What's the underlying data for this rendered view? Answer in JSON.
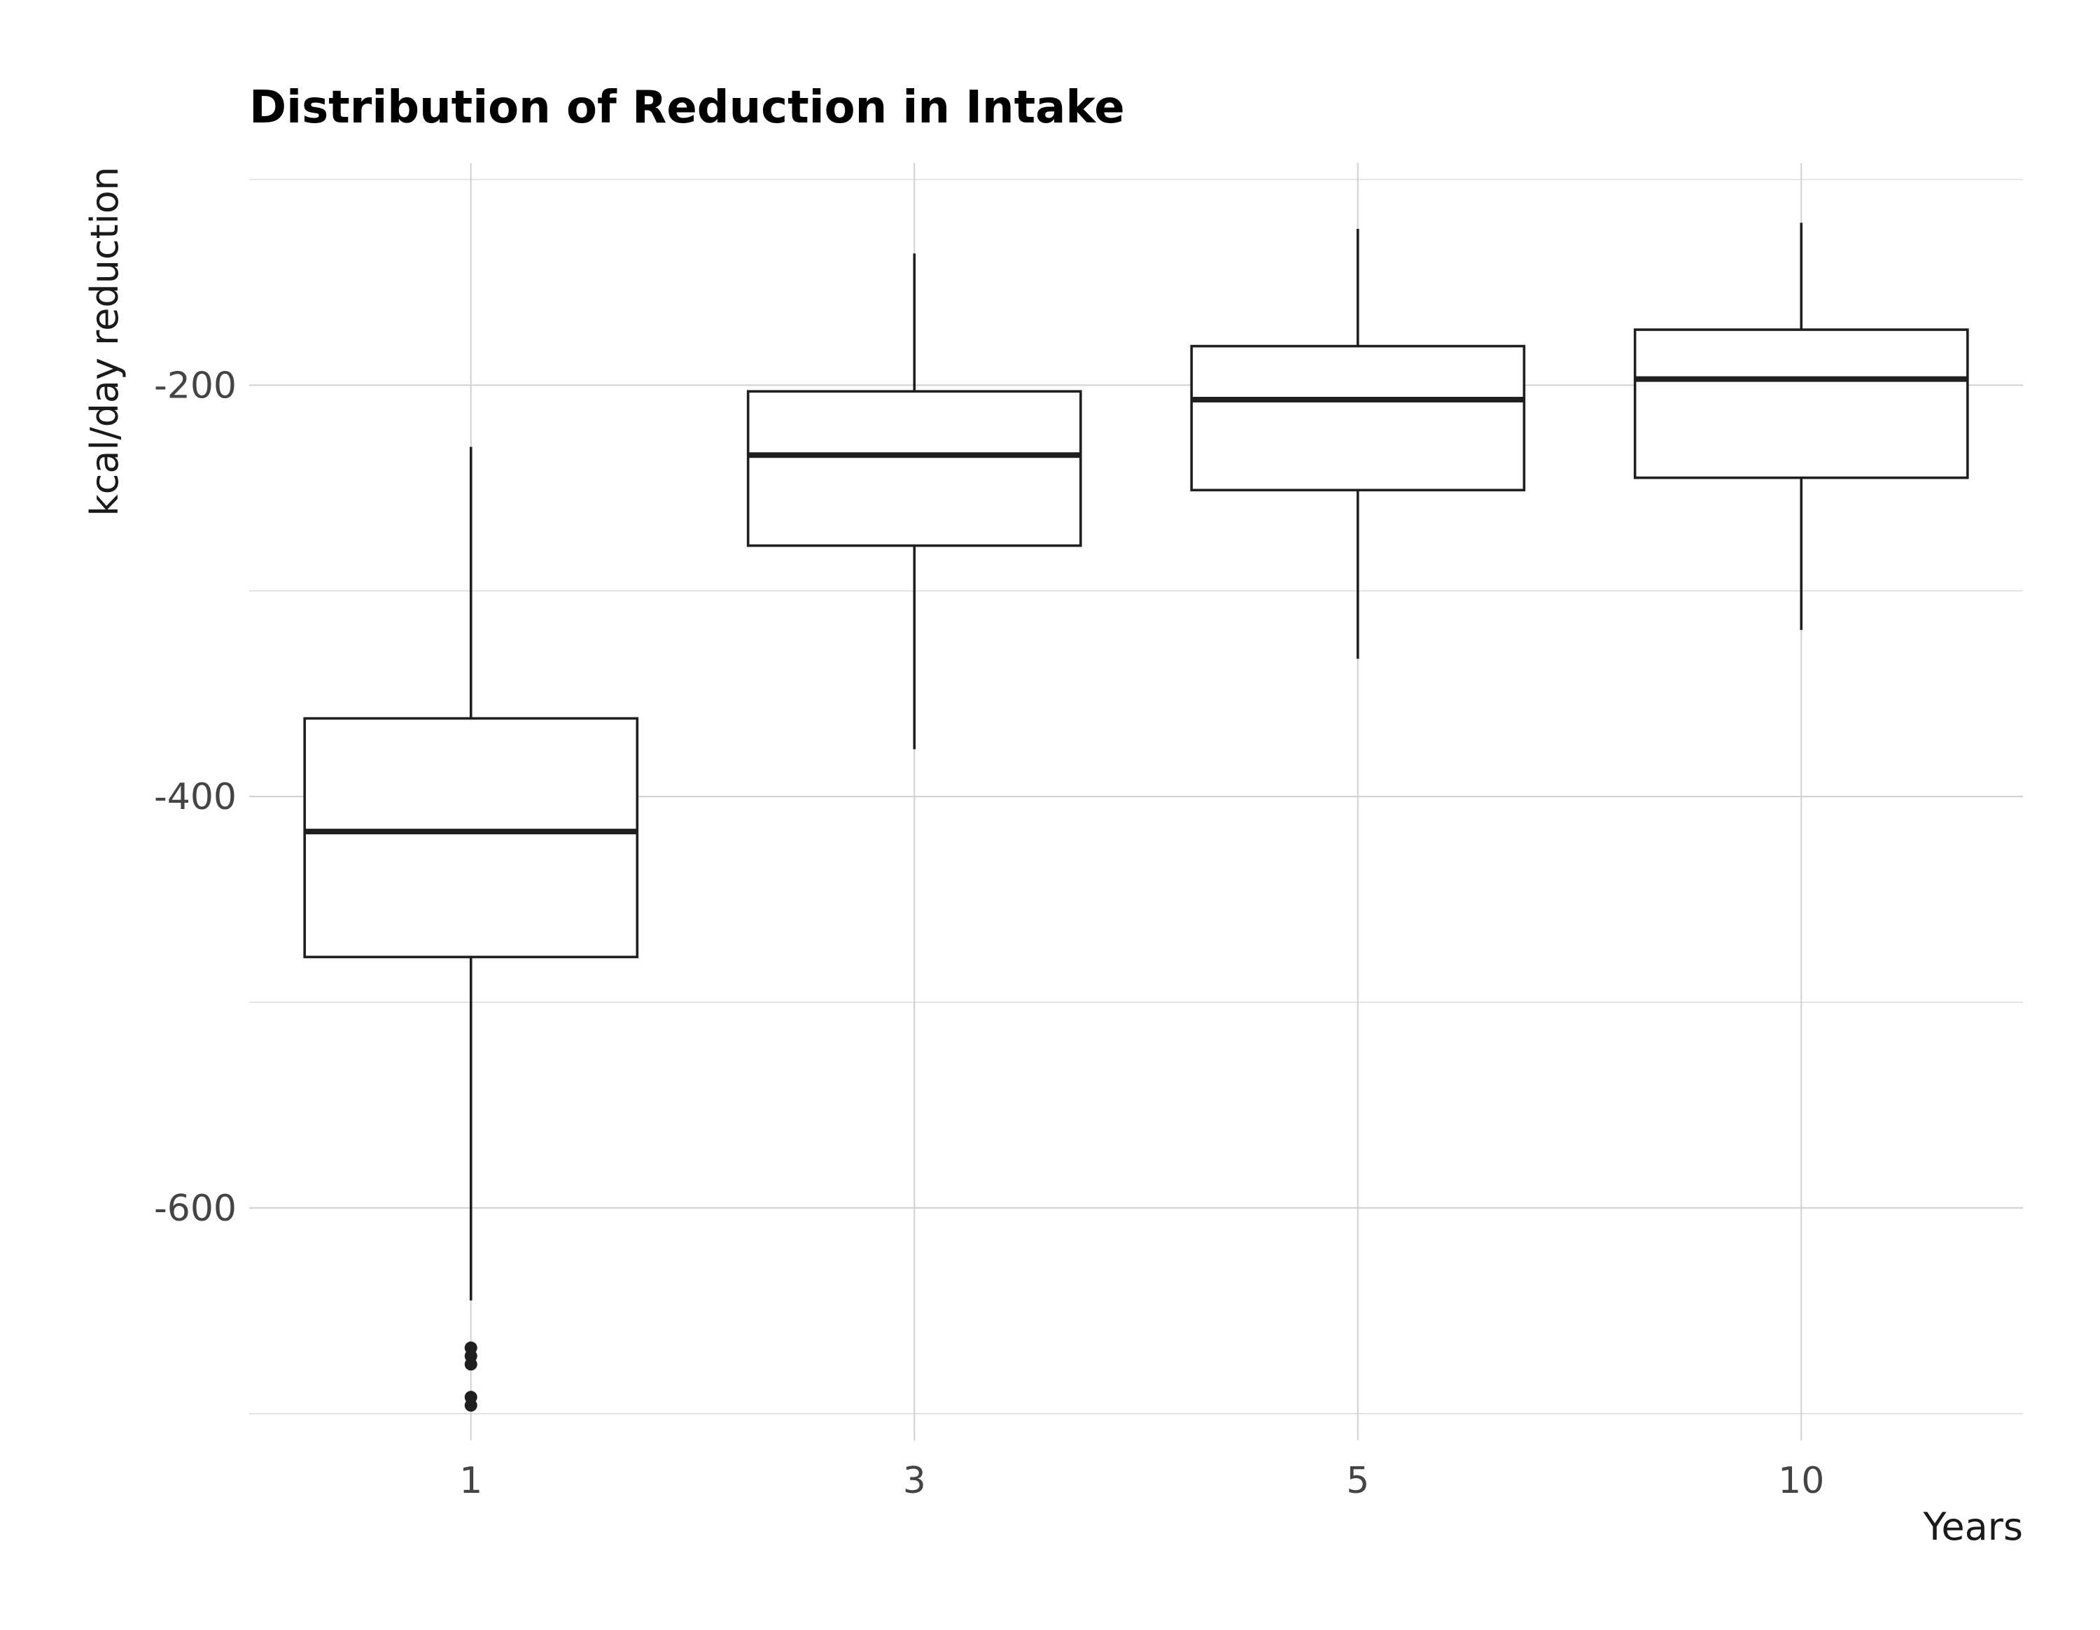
{
  "chart_data": {
    "type": "box",
    "title": "Distribution of Reduction in Intake",
    "xlabel": "Years",
    "ylabel": "kcal/day reduction",
    "categories": [
      "1",
      "3",
      "5",
      "10"
    ],
    "ylim": [
      -713,
      -92
    ],
    "yticks": [
      -200,
      -400,
      -600
    ],
    "ytick_labels": [
      "-200",
      "-400",
      "-600"
    ],
    "y_minor_gridlines": [
      -100,
      -300,
      -500,
      -700
    ],
    "grid": true,
    "boxes": [
      {
        "category": "1",
        "whisker_low": -645,
        "q1": -478,
        "median": -417,
        "q3": -362,
        "whisker_high": -230,
        "outliers": [
          -668,
          -672,
          -676,
          -692,
          -696
        ]
      },
      {
        "category": "3",
        "whisker_low": -377,
        "q1": -278,
        "median -or- q2": null,
        "median": -234,
        "q3": -203,
        "whisker_high": -136
      },
      {
        "category": "5",
        "whisker_low": -333,
        "q1": -251,
        "median": -207,
        "q3": -181,
        "whisker_high": -124
      },
      {
        "category": "10",
        "whisker_low": -319,
        "q1": -245,
        "median": -197,
        "q3": -173,
        "whisker_high": -121
      }
    ]
  }
}
